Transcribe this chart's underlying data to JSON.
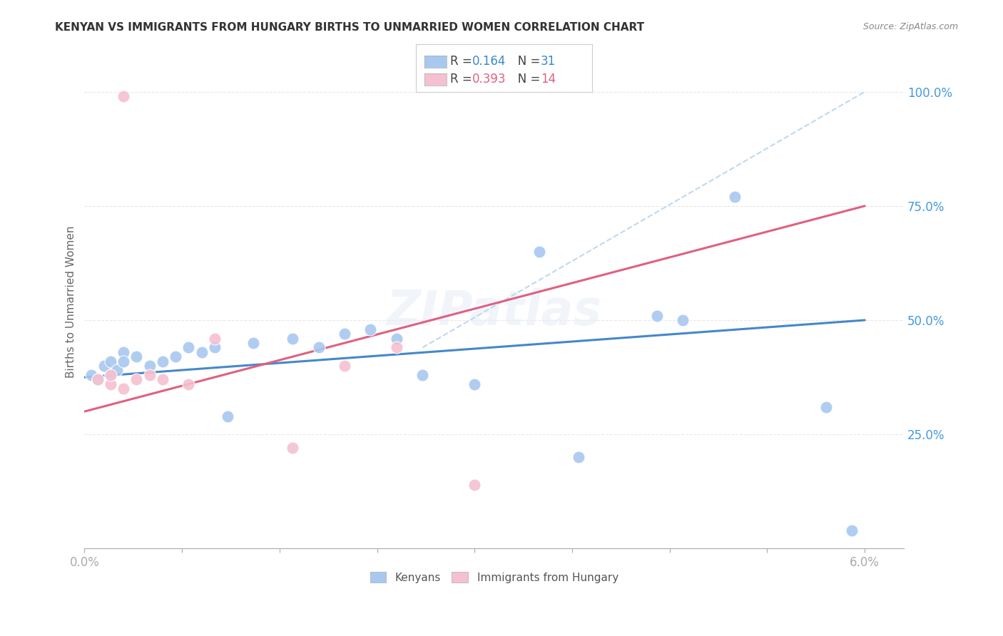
{
  "title": "KENYAN VS IMMIGRANTS FROM HUNGARY BIRTHS TO UNMARRIED WOMEN CORRELATION CHART",
  "source": "Source: ZipAtlas.com",
  "ylabel": "Births to Unmarried Women",
  "ytick_labels": [
    "25.0%",
    "50.0%",
    "75.0%",
    "100.0%"
  ],
  "ytick_values": [
    0.25,
    0.5,
    0.75,
    1.0
  ],
  "legend_blue_R": "0.164",
  "legend_blue_N": "31",
  "legend_pink_R": "0.393",
  "legend_pink_N": "14",
  "label_kenyans": "Kenyans",
  "label_hungary": "Immigrants from Hungary",
  "blue_scatter_x": [
    0.0005,
    0.001,
    0.0015,
    0.002,
    0.002,
    0.0025,
    0.003,
    0.003,
    0.004,
    0.005,
    0.006,
    0.007,
    0.008,
    0.009,
    0.01,
    0.011,
    0.013,
    0.016,
    0.018,
    0.02,
    0.022,
    0.024,
    0.026,
    0.03,
    0.035,
    0.038,
    0.044,
    0.046,
    0.05,
    0.057,
    0.059
  ],
  "blue_scatter_y": [
    0.38,
    0.37,
    0.4,
    0.38,
    0.41,
    0.39,
    0.43,
    0.41,
    0.42,
    0.4,
    0.41,
    0.42,
    0.44,
    0.43,
    0.44,
    0.29,
    0.45,
    0.46,
    0.44,
    0.47,
    0.48,
    0.46,
    0.38,
    0.36,
    0.65,
    0.2,
    0.51,
    0.5,
    0.77,
    0.31,
    0.04
  ],
  "pink_scatter_x": [
    0.001,
    0.002,
    0.002,
    0.003,
    0.003,
    0.004,
    0.005,
    0.006,
    0.008,
    0.01,
    0.016,
    0.02,
    0.024,
    0.03
  ],
  "pink_scatter_y": [
    0.37,
    0.36,
    0.38,
    0.35,
    0.99,
    0.37,
    0.38,
    0.37,
    0.36,
    0.46,
    0.22,
    0.4,
    0.44,
    0.14
  ],
  "blue_line_x": [
    0.0,
    0.06
  ],
  "blue_line_y": [
    0.375,
    0.5
  ],
  "pink_line_x": [
    0.0,
    0.06
  ],
  "pink_line_y": [
    0.3,
    0.75
  ],
  "diagonal_line_x": [
    0.026,
    0.06
  ],
  "diagonal_line_y": [
    0.44,
    1.0
  ],
  "xlim": [
    0.0,
    0.063
  ],
  "ylim": [
    0.0,
    1.08
  ],
  "blue_color": "#a8c8f0",
  "pink_color": "#f5c0d0",
  "blue_line_color": "#4488cc",
  "pink_line_color": "#e06080",
  "diagonal_color": "#c0d8f0",
  "grid_color": "#e8e8e8",
  "bg_color": "#ffffff",
  "title_color": "#333333",
  "source_color": "#888888",
  "axis_color": "#aaaaaa",
  "label_color": "#666666"
}
